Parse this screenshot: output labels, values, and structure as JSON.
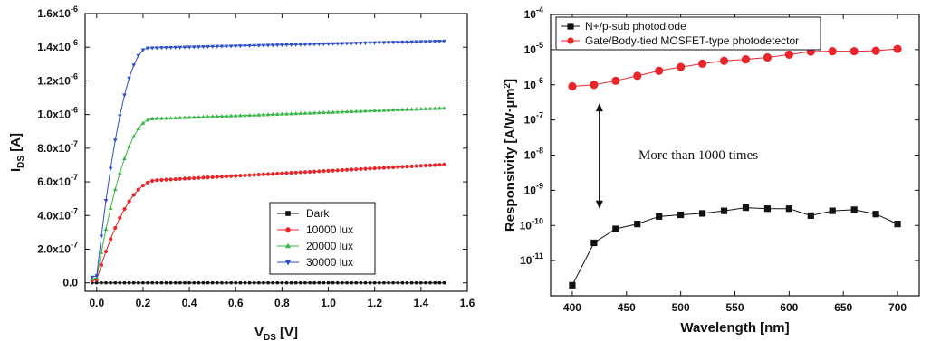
{
  "chart_data": [
    {
      "type": "line",
      "xlabel": "V",
      "xlabel_sub": "DS",
      "xlabel_unit": " [V]",
      "ylabel": "I",
      "ylabel_sub": "DS",
      "ylabel_unit": " [A]",
      "xlim": [
        -0.05,
        1.6
      ],
      "ylim": [
        -5e-08,
        1.6e-06
      ],
      "xticks": [
        0.0,
        0.2,
        0.4,
        0.6,
        0.8,
        1.0,
        1.2,
        1.4,
        1.6
      ],
      "xtick_labels": [
        "0.0",
        "0.2",
        "0.4",
        "0.6",
        "0.8",
        "1.0",
        "1.2",
        "1.4",
        "1.6"
      ],
      "yticks": [
        0,
        2e-07,
        4e-07,
        6e-07,
        8e-07,
        1e-06,
        1.2e-06,
        1.4e-06,
        1.6e-06
      ],
      "ytick_labels": [
        {
          "base": "0.0",
          "exp": ""
        },
        {
          "base": "2.0x10",
          "exp": "-7"
        },
        {
          "base": "4.0x10",
          "exp": "-7"
        },
        {
          "base": "6.0x10",
          "exp": "-7"
        },
        {
          "base": "8.0x10",
          "exp": "-7"
        },
        {
          "base": "1.0x10",
          "exp": "-6"
        },
        {
          "base": "1.2x10",
          "exp": "-6"
        },
        {
          "base": "1.4x10",
          "exp": "-6"
        },
        {
          "base": "1.6x10",
          "exp": "-6"
        }
      ],
      "legend_position": "bottom-right",
      "series": [
        {
          "name": "Dark",
          "color": "#111111",
          "marker": "square",
          "isat": 0.0,
          "vsat": 0.22,
          "slope": 0.0
        },
        {
          "name": "10000 lux",
          "color": "#e8262b",
          "marker": "circle",
          "isat": 6.1e-07,
          "vsat": 0.26,
          "slope": 7.5e-08
        },
        {
          "name": "20000 lux",
          "color": "#39b54a",
          "marker": "triangle-up",
          "isat": 9.75e-07,
          "vsat": 0.24,
          "slope": 5e-08
        },
        {
          "name": "30000 lux",
          "color": "#2e4fc6",
          "marker": "triangle-down",
          "isat": 1.395e-06,
          "vsat": 0.22,
          "slope": 3.2e-08
        }
      ],
      "x_step": 0.02,
      "x_range": [
        -0.02,
        1.5
      ]
    },
    {
      "type": "scatter",
      "yscale": "log",
      "xlabel": "Wavelength [nm]",
      "ylabel": "Responsivity [A/W·µm",
      "ylabel_sup": "2",
      "ylabel_end": "]",
      "xlim": [
        380,
        720
      ],
      "ylim_exp": [
        -12,
        -4
      ],
      "xticks": [
        400,
        450,
        500,
        550,
        600,
        650,
        700
      ],
      "xtick_labels": [
        "400",
        "450",
        "500",
        "550",
        "600",
        "650",
        "700"
      ],
      "yticks_exp": [
        -11,
        -10,
        -9,
        -8,
        -7,
        -6,
        -5,
        -4
      ],
      "ytick_labels": [
        {
          "base": "10",
          "exp": "-11"
        },
        {
          "base": "10",
          "exp": "-10"
        },
        {
          "base": "10",
          "exp": "-9"
        },
        {
          "base": "10",
          "exp": "-8"
        },
        {
          "base": "10",
          "exp": "-7"
        },
        {
          "base": "10",
          "exp": "-6"
        },
        {
          "base": "10",
          "exp": "-5"
        },
        {
          "base": "10",
          "exp": "-4"
        }
      ],
      "legend_position": "top-left",
      "x": [
        400,
        420,
        440,
        460,
        480,
        500,
        520,
        540,
        560,
        580,
        600,
        620,
        640,
        660,
        680,
        700
      ],
      "series": [
        {
          "name": "N+/p-sub photodiode",
          "color": "#111111",
          "marker": "square",
          "values": [
            2e-12,
            3.2e-11,
            8e-11,
            1.1e-10,
            1.8e-10,
            2e-10,
            2.2e-10,
            2.6e-10,
            3.2e-10,
            3e-10,
            3e-10,
            1.9e-10,
            2.6e-10,
            2.8e-10,
            2.1e-10,
            1.1e-10
          ]
        },
        {
          "name": "Gate/Body-tied MOSFET-type photodetector",
          "color": "#e8262b",
          "marker": "circle",
          "values": [
            9e-07,
            1e-06,
            1.3e-06,
            1.8e-06,
            2.5e-06,
            3.2e-06,
            4e-06,
            4.8e-06,
            5.3e-06,
            6e-06,
            7.2e-06,
            8.8e-06,
            9e-06,
            9e-06,
            9.3e-06,
            1.05e-05
          ]
        }
      ],
      "annotation": {
        "text": "More than 1000 times",
        "arrow_x": 425,
        "arrow_top": 3e-07,
        "arrow_bottom": 3e-10
      }
    }
  ]
}
